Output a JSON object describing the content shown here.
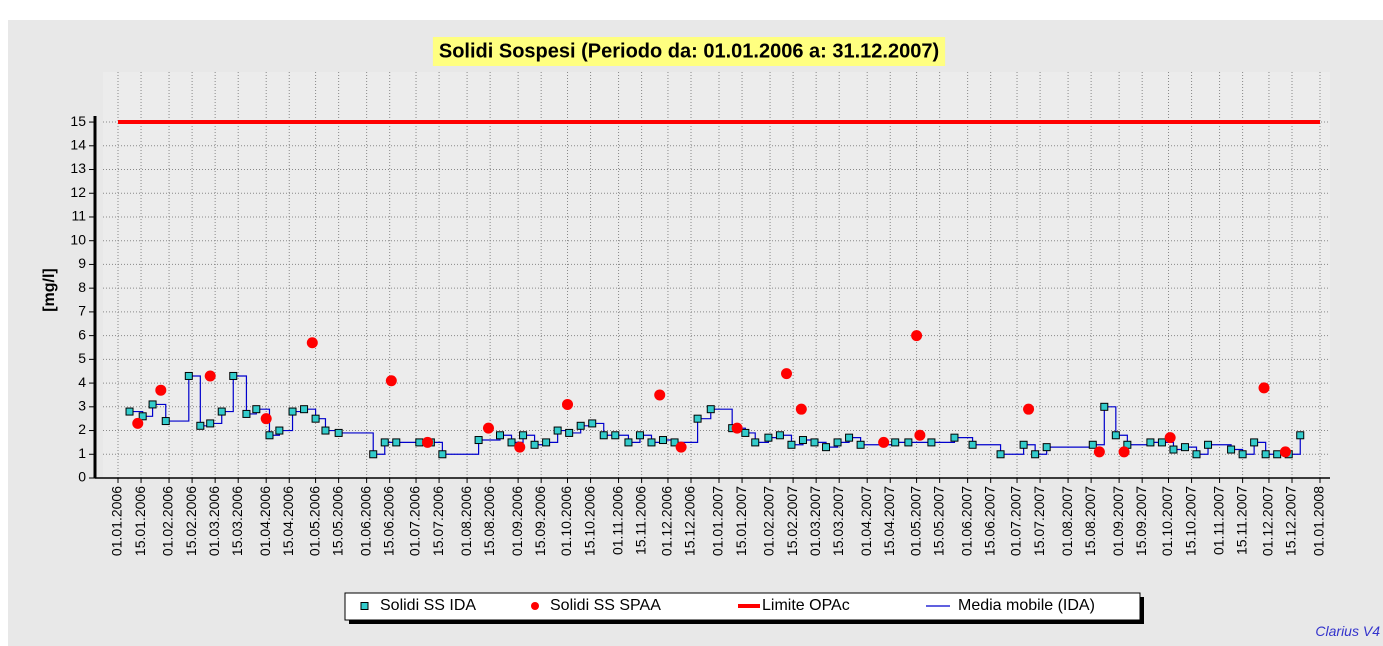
{
  "chart_data": {
    "type": "scatter",
    "title": "Solidi Sospesi (Periodo da: 01.01.2006 a: 31.12.2007)",
    "y_label": "[mg/l]",
    "footer": "Clarius V4",
    "xlim": [
      "01.01.2006",
      "01.01.2008"
    ],
    "ylim": [
      0,
      17
    ],
    "yticks": [
      0,
      1,
      2,
      3,
      4,
      5,
      6,
      7,
      8,
      9,
      10,
      11,
      12,
      13,
      14,
      15
    ],
    "xticks": [
      "01.01.2006",
      "15.01.2006",
      "01.02.2006",
      "15.02.2006",
      "01.03.2006",
      "15.03.2006",
      "01.04.2006",
      "15.04.2006",
      "01.05.2006",
      "15.05.2006",
      "01.06.2006",
      "15.06.2006",
      "01.07.2006",
      "15.07.2006",
      "01.08.2006",
      "15.08.2006",
      "01.09.2006",
      "15.09.2006",
      "01.10.2006",
      "15.10.2006",
      "01.11.2006",
      "15.11.2006",
      "01.12.2006",
      "15.12.2006",
      "01.01.2007",
      "15.01.2007",
      "01.02.2007",
      "15.02.2007",
      "01.03.2007",
      "15.03.2007",
      "01.04.2007",
      "15.04.2007",
      "01.05.2007",
      "15.05.2007",
      "01.06.2007",
      "15.06.2007",
      "01.07.2007",
      "15.07.2007",
      "01.08.2007",
      "15.08.2007",
      "01.09.2007",
      "15.09.2007",
      "01.10.2007",
      "15.10.2007",
      "01.11.2007",
      "15.11.2007",
      "01.12.2007",
      "15.12.2007",
      "01.01.2008"
    ],
    "grid": true,
    "series": [
      {
        "name": "Solidi SS IDA",
        "marker": "square",
        "color": "#33cccc",
        "x": [
          "08.01.2006",
          "16.01.2006",
          "22.01.2006",
          "30.01.2006",
          "13.02.2006",
          "20.02.2006",
          "26.02.2006",
          "05.03.2006",
          "12.03.2006",
          "20.03.2006",
          "26.03.2006",
          "03.04.2006",
          "09.04.2006",
          "17.04.2006",
          "24.04.2006",
          "01.05.2006",
          "07.05.2006",
          "15.05.2006",
          "05.06.2006",
          "12.06.2006",
          "19.06.2006",
          "03.07.2006",
          "10.07.2006",
          "17.07.2006",
          "08.08.2006",
          "21.08.2006",
          "28.08.2006",
          "04.09.2006",
          "11.09.2006",
          "18.09.2006",
          "25.09.2006",
          "02.10.2006",
          "09.10.2006",
          "16.10.2006",
          "23.10.2006",
          "30.10.2006",
          "07.11.2006",
          "14.11.2006",
          "21.11.2006",
          "28.11.2006",
          "05.12.2006",
          "19.12.2006",
          "27.12.2006",
          "09.01.2007",
          "17.01.2007",
          "23.01.2007",
          "31.01.2007",
          "07.02.2007",
          "14.02.2007",
          "21.02.2007",
          "28.02.2007",
          "07.03.2007",
          "14.03.2007",
          "21.03.2007",
          "28.03.2007",
          "18.04.2007",
          "26.04.2007",
          "10.05.2007",
          "24.05.2007",
          "04.06.2007",
          "21.06.2007",
          "05.07.2007",
          "12.07.2007",
          "19.07.2007",
          "16.08.2007",
          "23.08.2007",
          "30.08.2007",
          "06.09.2007",
          "20.09.2007",
          "27.09.2007",
          "04.10.2007",
          "11.10.2007",
          "18.10.2007",
          "25.10.2007",
          "08.11.2007",
          "15.11.2007",
          "22.11.2007",
          "29.11.2007",
          "06.12.2007",
          "13.12.2007",
          "20.12.2007"
        ],
        "values": [
          2.8,
          2.6,
          3.1,
          2.4,
          4.3,
          2.2,
          2.3,
          2.8,
          4.3,
          2.7,
          2.9,
          1.8,
          2.0,
          2.8,
          2.9,
          2.5,
          2.0,
          1.9,
          1.0,
          1.5,
          1.5,
          1.5,
          1.5,
          1.0,
          1.6,
          1.8,
          1.5,
          1.8,
          1.4,
          1.5,
          2.0,
          1.9,
          2.2,
          2.3,
          1.8,
          1.8,
          1.5,
          1.8,
          1.5,
          1.6,
          1.5,
          2.5,
          2.9,
          2.1,
          1.9,
          1.5,
          1.7,
          1.8,
          1.4,
          1.6,
          1.5,
          1.3,
          1.5,
          1.7,
          1.4,
          1.5,
          1.5,
          1.5,
          1.7,
          1.4,
          1.0,
          1.4,
          1.0,
          1.3,
          1.4,
          3.0,
          1.8,
          1.4,
          1.5,
          1.5,
          1.2,
          1.3,
          1.0,
          1.4,
          1.2,
          1.0,
          1.5,
          1.0,
          1.0,
          1.0,
          1.8
        ]
      },
      {
        "name": "Solidi SS SPAA",
        "marker": "circle",
        "color": "#ff0000",
        "x": [
          "13.01.2006",
          "27.01.2006",
          "26.02.2006",
          "01.04.2006",
          "29.04.2006",
          "16.06.2006",
          "08.07.2006",
          "14.08.2006",
          "02.09.2006",
          "01.10.2006",
          "26.11.2006",
          "09.12.2006",
          "12.01.2007",
          "11.02.2007",
          "20.02.2007",
          "11.04.2007",
          "01.05.2007",
          "03.05.2007",
          "08.07.2007",
          "20.08.2007",
          "04.09.2007",
          "02.10.2007",
          "28.11.2007",
          "11.12.2007"
        ],
        "values": [
          2.3,
          3.7,
          4.3,
          2.5,
          5.7,
          4.1,
          1.5,
          2.1,
          1.3,
          3.1,
          3.5,
          1.3,
          2.1,
          4.4,
          2.9,
          1.5,
          6.0,
          1.8,
          2.9,
          1.1,
          1.1,
          1.7,
          3.8,
          1.1
        ]
      },
      {
        "name": "Limite OPAc",
        "marker": "line",
        "color": "#ff0000",
        "x": [
          "01.01.2006",
          "01.01.2008"
        ],
        "values": [
          15,
          15
        ]
      },
      {
        "name": "Media mobile (IDA)",
        "marker": "step",
        "color": "#0000cc",
        "x": [
          "08.01.2006",
          "16.01.2006",
          "22.01.2006",
          "30.01.2006",
          "13.02.2006",
          "20.02.2006",
          "26.02.2006",
          "05.03.2006",
          "12.03.2006",
          "20.03.2006",
          "26.03.2006",
          "03.04.2006",
          "09.04.2006",
          "17.04.2006",
          "24.04.2006",
          "01.05.2006",
          "07.05.2006",
          "15.05.2006",
          "05.06.2006",
          "12.06.2006",
          "19.06.2006",
          "03.07.2006",
          "10.07.2006",
          "17.07.2006",
          "08.08.2006",
          "21.08.2006",
          "28.08.2006",
          "04.09.2006",
          "11.09.2006",
          "18.09.2006",
          "25.09.2006",
          "02.10.2006",
          "09.10.2006",
          "16.10.2006",
          "23.10.2006",
          "30.10.2006",
          "07.11.2006",
          "14.11.2006",
          "21.11.2006",
          "28.11.2006",
          "05.12.2006",
          "19.12.2006",
          "27.12.2006",
          "09.01.2007",
          "17.01.2007",
          "23.01.2007",
          "31.01.2007",
          "07.02.2007",
          "14.02.2007",
          "21.02.2007",
          "28.02.2007",
          "07.03.2007",
          "14.03.2007",
          "21.03.2007",
          "28.03.2007",
          "18.04.2007",
          "26.04.2007",
          "10.05.2007",
          "24.05.2007",
          "04.06.2007",
          "21.06.2007",
          "05.07.2007",
          "12.07.2007",
          "19.07.2007",
          "16.08.2007",
          "23.08.2007",
          "30.08.2007",
          "06.09.2007",
          "20.09.2007",
          "27.09.2007",
          "04.10.2007",
          "11.10.2007",
          "18.10.2007",
          "25.10.2007",
          "08.11.2007",
          "15.11.2007",
          "22.11.2007",
          "29.11.2007",
          "06.12.2007",
          "13.12.2007",
          "20.12.2007"
        ],
        "values": [
          2.8,
          2.6,
          3.1,
          2.4,
          4.3,
          2.2,
          2.3,
          2.8,
          4.3,
          2.7,
          2.9,
          1.8,
          2.0,
          2.8,
          2.9,
          2.5,
          2.0,
          1.9,
          1.0,
          1.5,
          1.5,
          1.5,
          1.5,
          1.0,
          1.6,
          1.8,
          1.5,
          1.8,
          1.4,
          1.5,
          2.0,
          1.9,
          2.2,
          2.3,
          1.8,
          1.8,
          1.5,
          1.8,
          1.5,
          1.6,
          1.5,
          2.5,
          2.9,
          2.1,
          1.9,
          1.5,
          1.7,
          1.8,
          1.4,
          1.6,
          1.5,
          1.3,
          1.5,
          1.7,
          1.4,
          1.5,
          1.5,
          1.5,
          1.7,
          1.4,
          1.0,
          1.4,
          1.0,
          1.3,
          1.4,
          3.0,
          1.8,
          1.4,
          1.5,
          1.5,
          1.2,
          1.3,
          1.0,
          1.4,
          1.2,
          1.0,
          1.5,
          1.0,
          1.0,
          1.0,
          1.8
        ]
      }
    ]
  }
}
